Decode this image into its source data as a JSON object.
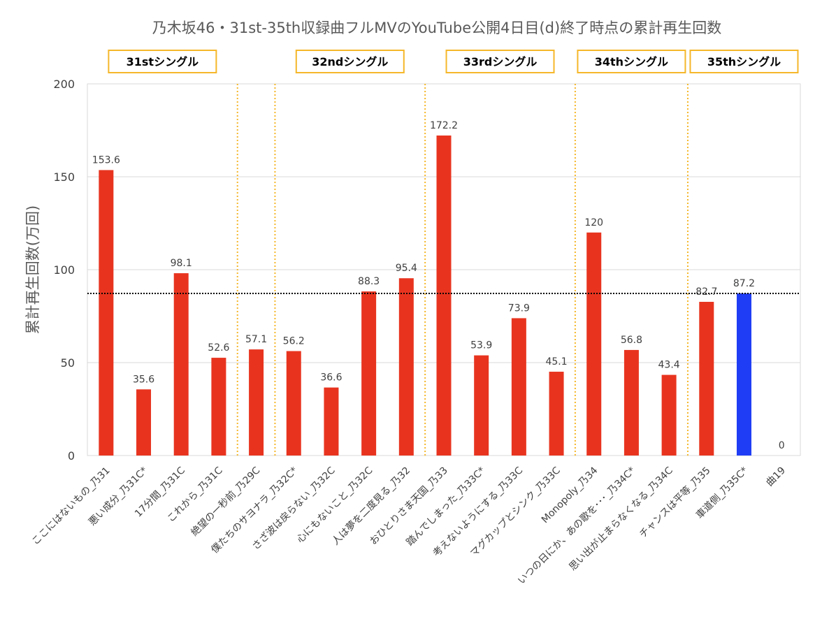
{
  "chart_data": {
    "type": "bar",
    "title": "乃木坂46・31st-35th収録曲フルMVのYouTube公開4日目(d)終了時点の累計再生回数",
    "xlabel": "",
    "ylabel": "累計再生回数(万回)",
    "ylim": [
      0,
      200
    ],
    "yticks": [
      0,
      50,
      100,
      150,
      200
    ],
    "grid": true,
    "categories": [
      "ここにはないもの_乃31",
      "悪い成分_乃31C*",
      "17分間_乃31C",
      "これから_乃31C",
      "絶望の一秒前_乃29C",
      "僕たちのサヨナラ_乃32C*",
      "さざ波は戻らない_乃32C",
      "心にもないこと_乃32C",
      "人は夢を二度見る_乃32",
      "おひとりさま天国_乃33",
      "踏んでしまった_乃33C*",
      "考えないようにする_乃33C",
      "マグカップとシンク_乃33C",
      "Monopoly_乃34",
      "いつの日にか、あの歌を･･･_乃34C*",
      "思い出が止まらなくなる_乃34C",
      "チャンスは平等_乃35",
      "車道側_乃35C*",
      "曲19"
    ],
    "values": [
      153.6,
      35.6,
      98.1,
      52.6,
      57.1,
      56.2,
      36.6,
      88.3,
      95.4,
      172.2,
      53.9,
      73.9,
      45.1,
      120,
      56.8,
      43.4,
      82.7,
      87.2,
      0
    ],
    "value_labels": [
      "153.6",
      "35.6",
      "98.1",
      "52.6",
      "57.1",
      "56.2",
      "36.6",
      "88.3",
      "95.4",
      "172.2",
      "53.9",
      "73.9",
      "45.1",
      "120",
      "56.8",
      "43.4",
      "82.7",
      "87.2",
      "0"
    ],
    "highlight_index": 17,
    "colors": {
      "bar": "#E8341F",
      "highlight": "#1F3DF5",
      "grid": "#D9D9D9",
      "group_box": "#F5B72A",
      "separator": "#F5B72A",
      "reference_line": "#000000"
    },
    "reference_line": 87.2,
    "groups": [
      {
        "label": "31stシングル",
        "start": 0,
        "end": 3
      },
      {
        "label": "32ndシングル",
        "start": 5,
        "end": 8
      },
      {
        "label": "33rdシングル",
        "start": 9,
        "end": 12
      },
      {
        "label": "34thシングル",
        "start": 13,
        "end": 15
      },
      {
        "label": "35thシングル",
        "start": 16,
        "end": 18
      }
    ],
    "separators_after": [
      3,
      4,
      8,
      12,
      15
    ]
  }
}
